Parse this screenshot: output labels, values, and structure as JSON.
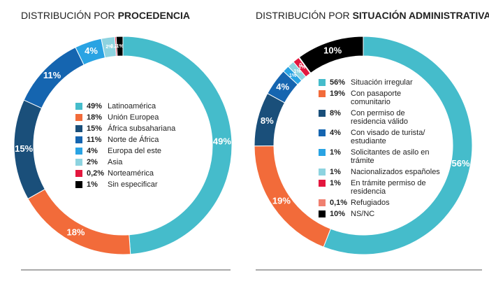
{
  "chart_data": [
    {
      "type": "pie",
      "title": "DISTRIBUCIÓN POR",
      "title_emphasis": "PROCEDENCIA",
      "categories": [
        "Latinoamérica",
        "Unión Europea",
        "África subsahariana",
        "Norte de África",
        "Europa del este",
        "Asia",
        "Norteamérica",
        "Sin especificar"
      ],
      "values": [
        49,
        18,
        15,
        11,
        4,
        2,
        0.2,
        1
      ],
      "value_labels": [
        "49%",
        "18%",
        "15%",
        "11%",
        "4%",
        "2%",
        "0,2%",
        "1%"
      ],
      "colors": [
        "#45bccb",
        "#f26b3a",
        "#1a4f7a",
        "#1565b0",
        "#29a3e3",
        "#8dd3e0",
        "#e3173e",
        "#000000"
      ]
    },
    {
      "type": "pie",
      "title": "DISTRIBUCIÓN POR",
      "title_emphasis": "SITUACIÓN ADMINISTRATIVA",
      "categories": [
        "Situación irregular",
        "Con pasaporte comunitario",
        "Con permiso de residencia válido",
        "Con visado de turista/ estudiante",
        "Solicitantes de asilo en trámite",
        "Nacionalizados españoles",
        "En trámite permiso de residencia",
        "Refugiados",
        "NS/NC"
      ],
      "values": [
        56,
        19,
        8,
        4,
        1,
        1,
        1,
        0.1,
        10
      ],
      "value_labels": [
        "56%",
        "19%",
        "8%",
        "4%",
        "1%",
        "1%",
        "1%",
        "0,1%",
        "10%"
      ],
      "colors": [
        "#45bccb",
        "#f26b3a",
        "#1a4f7a",
        "#1565b0",
        "#29a3e3",
        "#8dd3e0",
        "#e3173e",
        "#f08070",
        "#000000"
      ]
    }
  ]
}
